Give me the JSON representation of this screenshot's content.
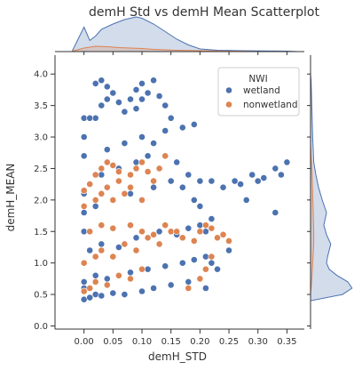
{
  "chart_data": {
    "type": "scatter",
    "title": "demH Std vs demH Mean Scatterplot",
    "xlabel": "demH_STD",
    "ylabel": "demH_MEAN",
    "xlim": [
      -0.05,
      0.38
    ],
    "ylim": [
      -0.05,
      4.3
    ],
    "xticks": [
      "0.00",
      "0.05",
      "0.10",
      "0.15",
      "0.20",
      "0.25",
      "0.30",
      "0.35"
    ],
    "xtick_values": [
      0.0,
      0.05,
      0.1,
      0.15,
      0.2,
      0.25,
      0.3,
      0.35
    ],
    "yticks": [
      "0.0",
      "0.5",
      "1.0",
      "1.5",
      "2.0",
      "2.5",
      "3.0",
      "3.5",
      "4.0"
    ],
    "ytick_values": [
      0.0,
      0.5,
      1.0,
      1.5,
      2.0,
      2.5,
      3.0,
      3.5,
      4.0
    ],
    "grid": false,
    "legend": {
      "title": "NWI",
      "placement": "top-right",
      "entries": [
        {
          "label": "wetland",
          "color": "#4c72b0"
        },
        {
          "label": "nonwetland",
          "color": "#dd8452"
        }
      ]
    },
    "series": [
      {
        "name": "wetland",
        "color": "#4c72b0",
        "points": [
          [
            0.0,
            0.42
          ],
          [
            0.01,
            0.45
          ],
          [
            0.02,
            0.5
          ],
          [
            0.03,
            0.48
          ],
          [
            0.05,
            0.52
          ],
          [
            0.07,
            0.5
          ],
          [
            0.1,
            0.55
          ],
          [
            0.12,
            0.6
          ],
          [
            0.15,
            0.65
          ],
          [
            0.18,
            0.7
          ],
          [
            0.2,
            0.75
          ],
          [
            0.0,
            0.7
          ],
          [
            0.02,
            0.8
          ],
          [
            0.04,
            0.75
          ],
          [
            0.08,
            0.85
          ],
          [
            0.11,
            0.9
          ],
          [
            0.14,
            0.95
          ],
          [
            0.17,
            1.0
          ],
          [
            0.19,
            1.05
          ],
          [
            0.21,
            1.1
          ],
          [
            0.01,
            1.2
          ],
          [
            0.03,
            1.3
          ],
          [
            0.06,
            1.25
          ],
          [
            0.09,
            1.4
          ],
          [
            0.13,
            1.5
          ],
          [
            0.16,
            1.45
          ],
          [
            0.18,
            1.55
          ],
          [
            0.2,
            1.6
          ],
          [
            0.22,
            1.7
          ],
          [
            0.21,
            1.5
          ],
          [
            0.0,
            1.8
          ],
          [
            0.02,
            1.9
          ],
          [
            0.05,
            2.0
          ],
          [
            0.08,
            2.1
          ],
          [
            0.1,
            2.0
          ],
          [
            0.12,
            2.2
          ],
          [
            0.15,
            2.3
          ],
          [
            0.17,
            2.2
          ],
          [
            0.19,
            2.0
          ],
          [
            0.2,
            1.9
          ],
          [
            0.03,
            2.4
          ],
          [
            0.06,
            2.5
          ],
          [
            0.09,
            2.6
          ],
          [
            0.11,
            2.7
          ],
          [
            0.13,
            2.5
          ],
          [
            0.16,
            2.6
          ],
          [
            0.18,
            2.4
          ],
          [
            0.2,
            2.3
          ],
          [
            0.04,
            2.8
          ],
          [
            0.07,
            2.9
          ],
          [
            0.1,
            3.0
          ],
          [
            0.12,
            2.9
          ],
          [
            0.14,
            3.1
          ],
          [
            0.17,
            3.15
          ],
          [
            0.19,
            3.2
          ],
          [
            0.02,
            3.3
          ],
          [
            0.03,
            3.5
          ],
          [
            0.04,
            3.6
          ],
          [
            0.05,
            3.7
          ],
          [
            0.06,
            3.55
          ],
          [
            0.07,
            3.4
          ],
          [
            0.08,
            3.6
          ],
          [
            0.09,
            3.75
          ],
          [
            0.1,
            3.85
          ],
          [
            0.11,
            3.7
          ],
          [
            0.12,
            3.9
          ],
          [
            0.13,
            3.65
          ],
          [
            0.14,
            3.5
          ],
          [
            0.15,
            3.3
          ],
          [
            0.02,
            3.85
          ],
          [
            0.03,
            3.9
          ],
          [
            0.04,
            3.8
          ],
          [
            0.1,
            3.6
          ],
          [
            0.09,
            3.45
          ],
          [
            0.0,
            3.3
          ],
          [
            0.01,
            3.3
          ],
          [
            0.22,
            2.3
          ],
          [
            0.24,
            2.2
          ],
          [
            0.26,
            2.3
          ],
          [
            0.27,
            2.25
          ],
          [
            0.28,
            2.0
          ],
          [
            0.29,
            2.4
          ],
          [
            0.3,
            2.3
          ],
          [
            0.31,
            2.35
          ],
          [
            0.33,
            2.5
          ],
          [
            0.34,
            2.4
          ],
          [
            0.35,
            2.6
          ],
          [
            0.33,
            1.8
          ],
          [
            0.25,
            1.2
          ],
          [
            0.23,
            0.9
          ],
          [
            0.22,
            1.0
          ],
          [
            0.21,
            0.6
          ],
          [
            0.0,
            0.6
          ],
          [
            0.0,
            1.0
          ],
          [
            0.0,
            1.5
          ],
          [
            0.0,
            2.1
          ],
          [
            0.0,
            2.7
          ],
          [
            0.0,
            3.0
          ]
        ]
      },
      {
        "name": "nonwetland",
        "color": "#dd8452",
        "points": [
          [
            0.0,
            0.55
          ],
          [
            0.01,
            0.6
          ],
          [
            0.02,
            0.7
          ],
          [
            0.04,
            0.65
          ],
          [
            0.06,
            0.8
          ],
          [
            0.08,
            0.75
          ],
          [
            0.1,
            0.9
          ],
          [
            0.0,
            1.0
          ],
          [
            0.02,
            1.1
          ],
          [
            0.03,
            1.2
          ],
          [
            0.05,
            1.1
          ],
          [
            0.07,
            1.3
          ],
          [
            0.09,
            1.2
          ],
          [
            0.11,
            1.4
          ],
          [
            0.13,
            1.3
          ],
          [
            0.15,
            1.5
          ],
          [
            0.17,
            1.4
          ],
          [
            0.19,
            1.35
          ],
          [
            0.01,
            1.5
          ],
          [
            0.03,
            1.6
          ],
          [
            0.05,
            1.55
          ],
          [
            0.08,
            1.6
          ],
          [
            0.1,
            1.5
          ],
          [
            0.12,
            1.45
          ],
          [
            0.14,
            1.6
          ],
          [
            0.16,
            1.5
          ],
          [
            0.0,
            1.9
          ],
          [
            0.02,
            2.0
          ],
          [
            0.03,
            2.1
          ],
          [
            0.04,
            2.2
          ],
          [
            0.05,
            2.0
          ],
          [
            0.06,
            2.3
          ],
          [
            0.07,
            2.1
          ],
          [
            0.08,
            2.2
          ],
          [
            0.1,
            2.0
          ],
          [
            0.02,
            2.4
          ],
          [
            0.03,
            2.5
          ],
          [
            0.04,
            2.6
          ],
          [
            0.05,
            2.55
          ],
          [
            0.06,
            2.45
          ],
          [
            0.08,
            2.4
          ],
          [
            0.09,
            2.5
          ],
          [
            0.1,
            2.6
          ],
          [
            0.11,
            2.45
          ],
          [
            0.12,
            2.3
          ],
          [
            0.2,
            1.5
          ],
          [
            0.21,
            1.6
          ],
          [
            0.22,
            1.55
          ],
          [
            0.23,
            1.4
          ],
          [
            0.24,
            1.45
          ],
          [
            0.25,
            1.35
          ],
          [
            0.22,
            1.1
          ],
          [
            0.21,
            0.9
          ],
          [
            0.2,
            0.75
          ],
          [
            0.18,
            0.6
          ],
          [
            0.01,
            2.25
          ],
          [
            0.0,
            2.15
          ],
          [
            0.13,
            2.5
          ],
          [
            0.14,
            2.7
          ]
        ]
      }
    ],
    "marginal_x": {
      "type": "kde",
      "wetland_density": [
        [
          -0.02,
          0.02
        ],
        [
          0.0,
          0.55
        ],
        [
          0.01,
          0.25
        ],
        [
          0.02,
          0.35
        ],
        [
          0.03,
          0.5
        ],
        [
          0.05,
          0.62
        ],
        [
          0.07,
          0.72
        ],
        [
          0.09,
          0.78
        ],
        [
          0.1,
          0.75
        ],
        [
          0.12,
          0.62
        ],
        [
          0.14,
          0.45
        ],
        [
          0.16,
          0.28
        ],
        [
          0.18,
          0.15
        ],
        [
          0.2,
          0.06
        ],
        [
          0.23,
          0.03
        ],
        [
          0.27,
          0.02
        ],
        [
          0.31,
          0.015
        ],
        [
          0.35,
          0.01
        ],
        [
          0.37,
          0.0
        ]
      ],
      "nonwetland_density": [
        [
          -0.02,
          0.01
        ],
        [
          0.0,
          0.08
        ],
        [
          0.02,
          0.12
        ],
        [
          0.04,
          0.11
        ],
        [
          0.06,
          0.09
        ],
        [
          0.08,
          0.08
        ],
        [
          0.1,
          0.07
        ],
        [
          0.12,
          0.05
        ],
        [
          0.14,
          0.04
        ],
        [
          0.16,
          0.03
        ],
        [
          0.2,
          0.02
        ],
        [
          0.25,
          0.01
        ],
        [
          0.3,
          0.0
        ]
      ]
    },
    "marginal_y": {
      "type": "kde",
      "wetland_density": [
        [
          0.4,
          0.0
        ],
        [
          0.5,
          0.6
        ],
        [
          0.6,
          0.78
        ],
        [
          0.7,
          0.7
        ],
        [
          0.8,
          0.5
        ],
        [
          0.9,
          0.35
        ],
        [
          1.0,
          0.3
        ],
        [
          1.1,
          0.32
        ],
        [
          1.2,
          0.35
        ],
        [
          1.3,
          0.38
        ],
        [
          1.45,
          0.3
        ],
        [
          1.6,
          0.25
        ],
        [
          1.8,
          0.3
        ],
        [
          2.0,
          0.22
        ],
        [
          2.2,
          0.15
        ],
        [
          2.4,
          0.1
        ],
        [
          2.6,
          0.06
        ],
        [
          2.8,
          0.05
        ],
        [
          3.0,
          0.04
        ],
        [
          3.3,
          0.03
        ],
        [
          3.6,
          0.02
        ],
        [
          3.9,
          0.01
        ],
        [
          4.0,
          0.0
        ]
      ],
      "nonwetland_density": [
        [
          0.5,
          0.0
        ],
        [
          0.7,
          0.02
        ],
        [
          1.0,
          0.04
        ],
        [
          1.3,
          0.06
        ],
        [
          1.5,
          0.06
        ],
        [
          1.8,
          0.05
        ],
        [
          2.1,
          0.04
        ],
        [
          2.4,
          0.03
        ],
        [
          2.7,
          0.01
        ],
        [
          2.9,
          0.0
        ]
      ]
    }
  }
}
